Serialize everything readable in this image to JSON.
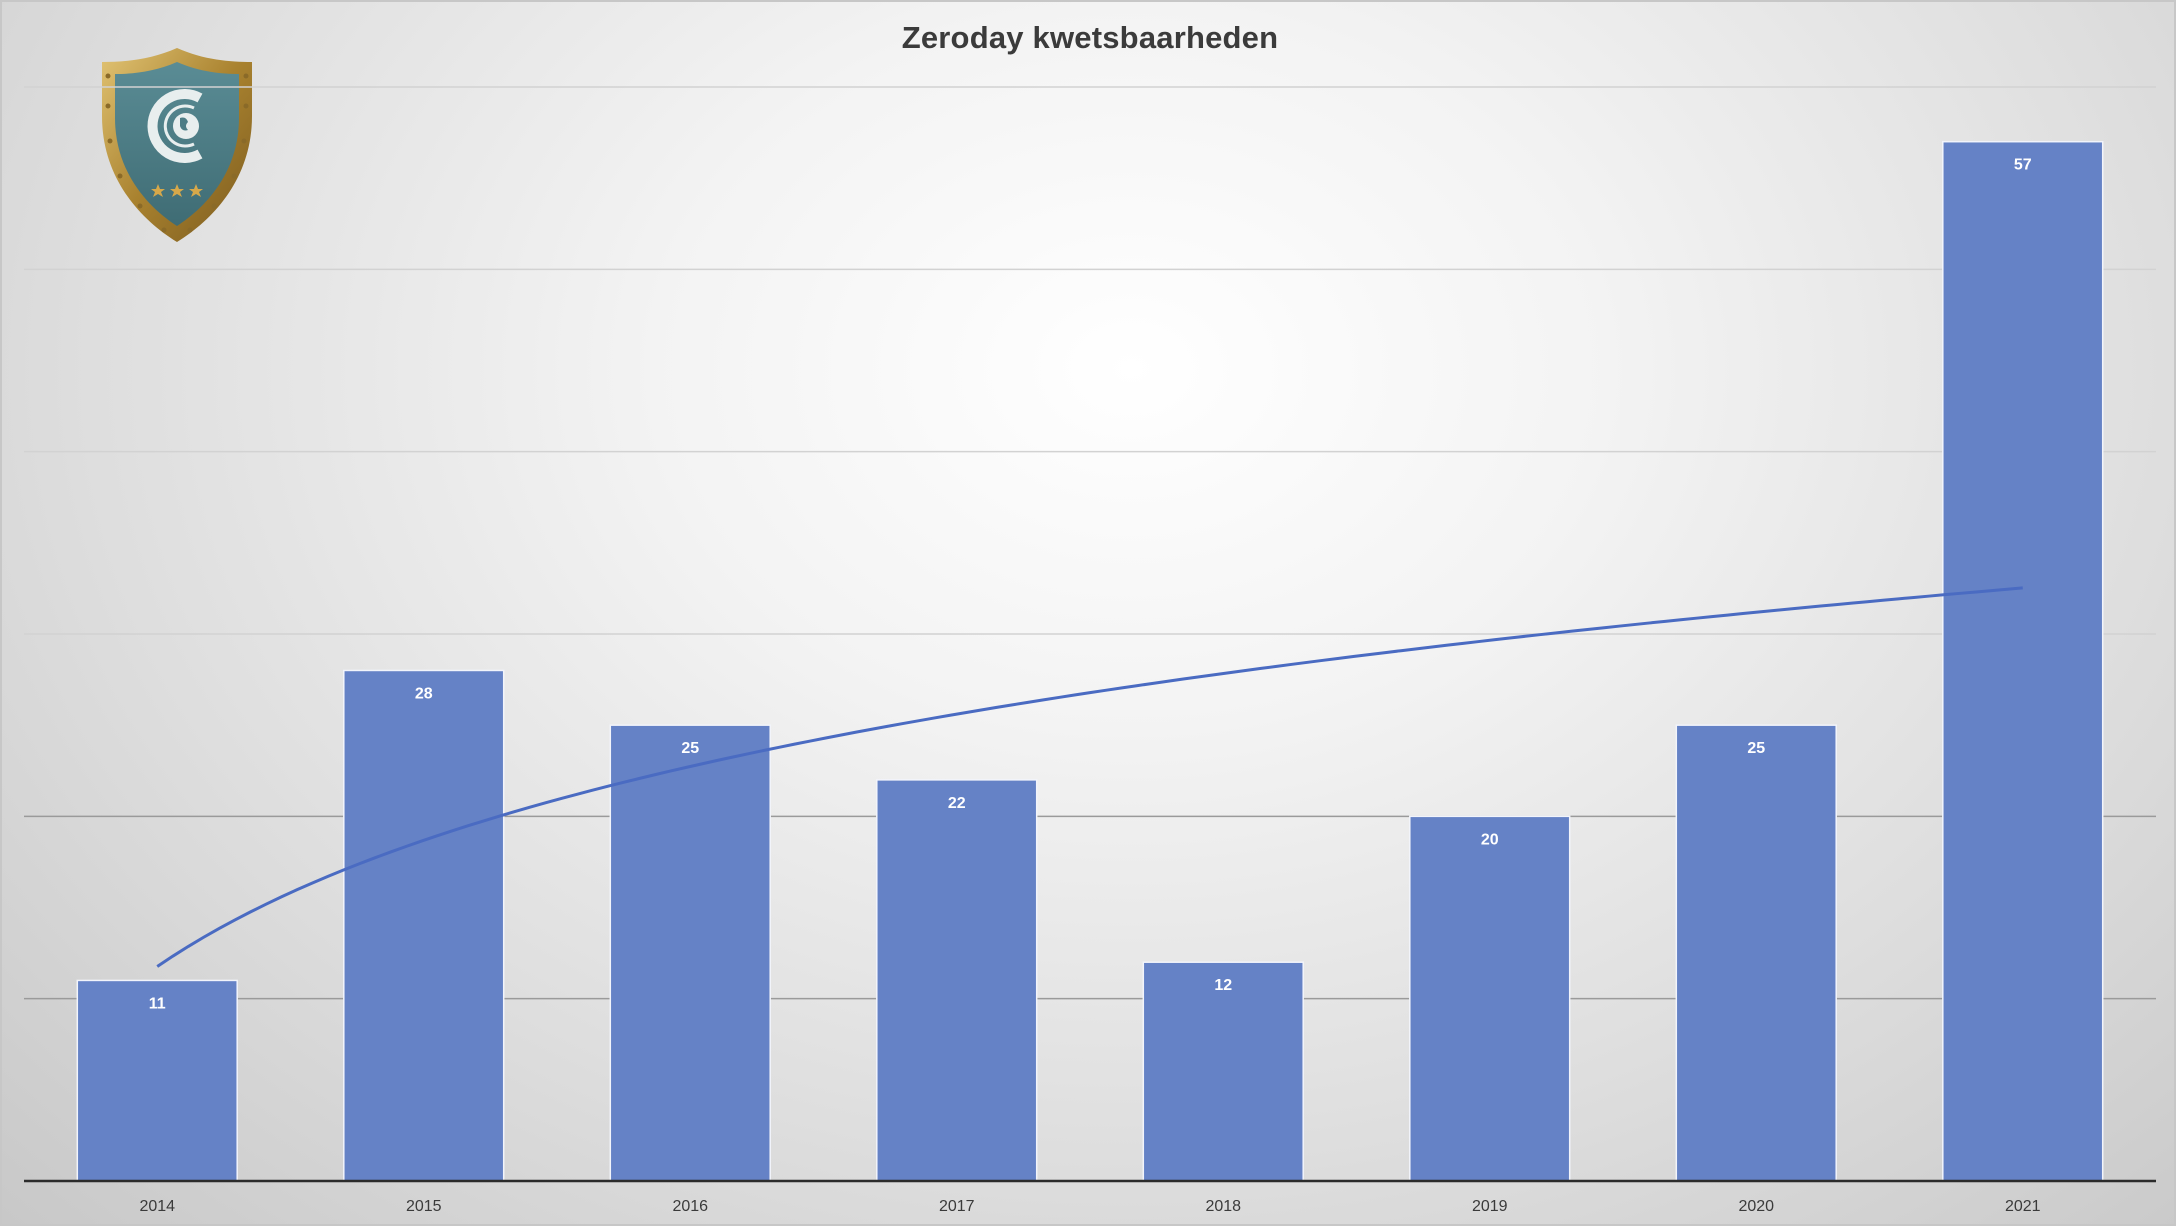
{
  "chart_data": {
    "type": "bar",
    "title": "Zeroday kwetsbaarheden",
    "categories": [
      "2014",
      "2015",
      "2016",
      "2017",
      "2018",
      "2019",
      "2020",
      "2021"
    ],
    "series": [
      {
        "values": [
          11,
          28,
          25,
          22,
          12,
          20,
          25,
          57
        ]
      }
    ],
    "trendline": {
      "type": "logarithmic",
      "color": "#4a6bc2"
    },
    "data_labels": true,
    "ylim": [
      0,
      60
    ],
    "y_gridlines": [
      10,
      20,
      30,
      40,
      50,
      60
    ],
    "grid": true,
    "y_tick_labels_visible": false,
    "legend": "none",
    "bar_color": "#6582c6",
    "data_label_color": "#ffffff"
  },
  "logo": {
    "icon": "shield-globe-logo",
    "colors": {
      "rim": "#b8923c",
      "face": "#4d7d86"
    }
  }
}
